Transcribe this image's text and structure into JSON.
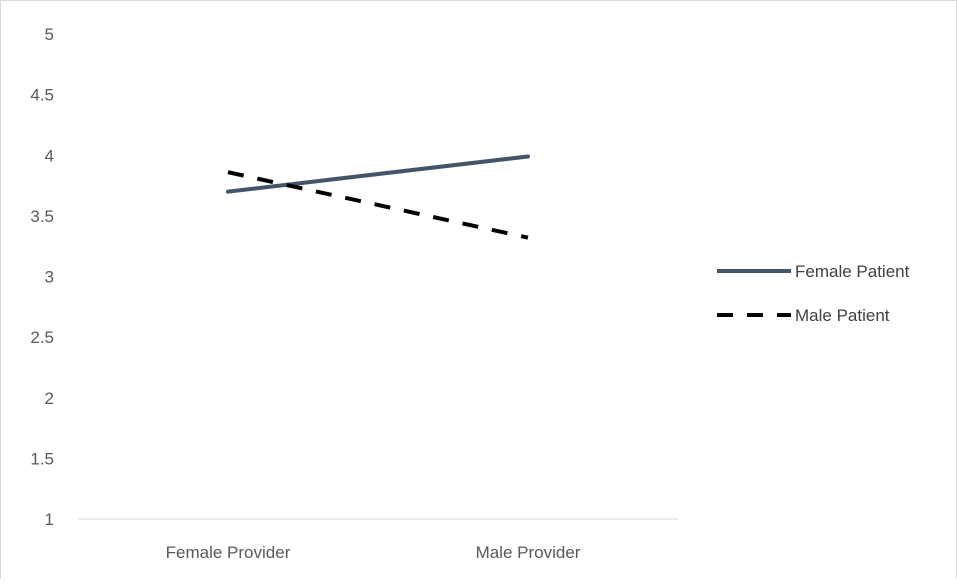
{
  "chart_data": {
    "type": "line",
    "categories": [
      "Female Provider",
      "Male Provider"
    ],
    "series": [
      {
        "name": "Female Patient",
        "values": [
          3.7,
          3.99
        ],
        "color": "#44546a",
        "dash": "solid"
      },
      {
        "name": "Male Patient",
        "values": [
          3.86,
          3.32
        ],
        "color": "#000000",
        "dash": "dashed"
      }
    ],
    "ylim": [
      1,
      5
    ],
    "yticks": [
      "1",
      "1.5",
      "2",
      "2.5",
      "3",
      "3.5",
      "4",
      "4.5",
      "5"
    ],
    "grid": false,
    "legend_position": "right",
    "title": "",
    "xlabel": "",
    "ylabel": ""
  }
}
